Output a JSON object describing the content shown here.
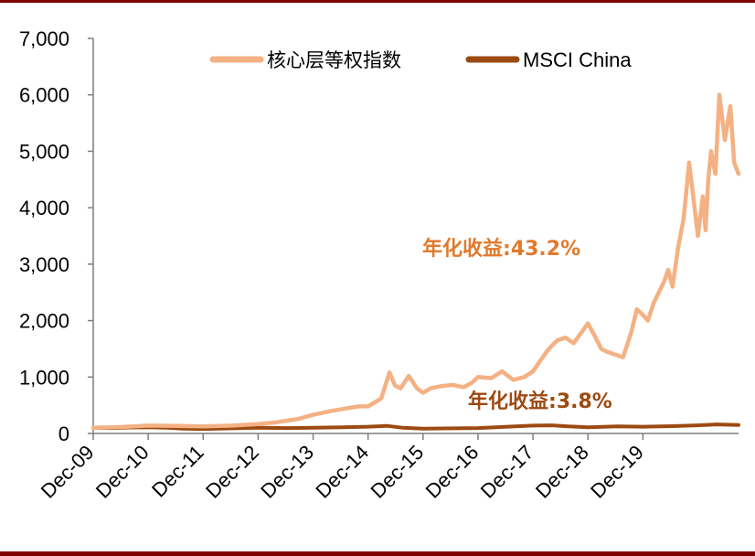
{
  "colors": {
    "frame": "#7f0000",
    "core_index": "#f4b183",
    "msci_china": "#9c4a12",
    "annotation_core": "#e07a2c",
    "annotation_msci": "#9c4a12"
  },
  "chart_data": {
    "type": "line",
    "title": "",
    "xlabel": "",
    "ylabel": "",
    "ylim": [
      0,
      7000
    ],
    "yticks": [
      "0",
      "1,000",
      "2,000",
      "3,000",
      "4,000",
      "5,000",
      "6,000",
      "7,000"
    ],
    "yticks_values": [
      0,
      1000,
      2000,
      3000,
      4000,
      5000,
      6000,
      7000
    ],
    "xticks": [
      "Dec-09",
      "Dec-10",
      "Dec-11",
      "Dec-12",
      "Dec-13",
      "Dec-14",
      "Dec-15",
      "Dec-16",
      "Dec-17",
      "Dec-18",
      "Dec-19"
    ],
    "grid": false,
    "legend": {
      "placement": "top"
    },
    "series": [
      {
        "name": "核心层等权指数",
        "x": [
          2009.96,
          2010.5,
          2010.96,
          2011.5,
          2011.96,
          2012.5,
          2012.96,
          2013.3,
          2013.7,
          2013.96,
          2014.3,
          2014.6,
          2014.8,
          2014.96,
          2015.2,
          2015.35,
          2015.45,
          2015.55,
          2015.7,
          2015.85,
          2015.96,
          2016.1,
          2016.3,
          2016.5,
          2016.7,
          2016.85,
          2016.96,
          2017.2,
          2017.4,
          2017.6,
          2017.8,
          2017.96,
          2018.1,
          2018.25,
          2018.4,
          2018.55,
          2018.7,
          2018.85,
          2018.96,
          2019.1,
          2019.2,
          2019.3,
          2019.45,
          2019.6,
          2019.75,
          2019.85,
          2019.96,
          2020.05,
          2020.15,
          2020.25,
          2020.35,
          2020.42,
          2020.5,
          2020.6,
          2020.7,
          2020.8,
          2020.9,
          2020.96,
          2021.05,
          2021.1,
          2021.15,
          2021.2,
          2021.28,
          2021.35,
          2021.45,
          2021.55,
          2021.62,
          2021.7
        ],
        "values": [
          100,
          115,
          140,
          135,
          125,
          140,
          165,
          200,
          260,
          330,
          400,
          450,
          480,
          480,
          620,
          1080,
          850,
          800,
          1020,
          800,
          720,
          800,
          840,
          860,
          820,
          900,
          1000,
          980,
          1100,
          950,
          1000,
          1100,
          1300,
          1500,
          1650,
          1700,
          1600,
          1800,
          1950,
          1700,
          1500,
          1450,
          1400,
          1350,
          1800,
          2200,
          2100,
          2000,
          2300,
          2500,
          2700,
          2900,
          2600,
          3300,
          3800,
          4800,
          4000,
          3500,
          4200,
          3600,
          4500,
          5000,
          4600,
          6000,
          5200,
          5800,
          4800,
          4600
        ]
      },
      {
        "name": "MSCI China",
        "x": [
          2009.96,
          2010.3,
          2010.6,
          2010.96,
          2011.3,
          2011.6,
          2011.96,
          2012.5,
          2012.96,
          2013.5,
          2013.96,
          2014.5,
          2014.96,
          2015.3,
          2015.6,
          2015.96,
          2016.5,
          2016.96,
          2017.5,
          2017.96,
          2018.3,
          2018.6,
          2018.96,
          2019.5,
          2019.96,
          2020.5,
          2020.96,
          2021.3,
          2021.7
        ],
        "values": [
          100,
          95,
          105,
          110,
          100,
          85,
          80,
          90,
          100,
          95,
          100,
          110,
          120,
          135,
          100,
          85,
          90,
          95,
          120,
          140,
          145,
          125,
          110,
          125,
          120,
          130,
          145,
          160,
          150
        ]
      }
    ],
    "annotations": [
      {
        "label": "年化收益:",
        "value": "43.2%",
        "series": "核心层等权指数"
      },
      {
        "label": "年化收益:",
        "value": "3.8%",
        "series": "MSCI China"
      }
    ]
  }
}
